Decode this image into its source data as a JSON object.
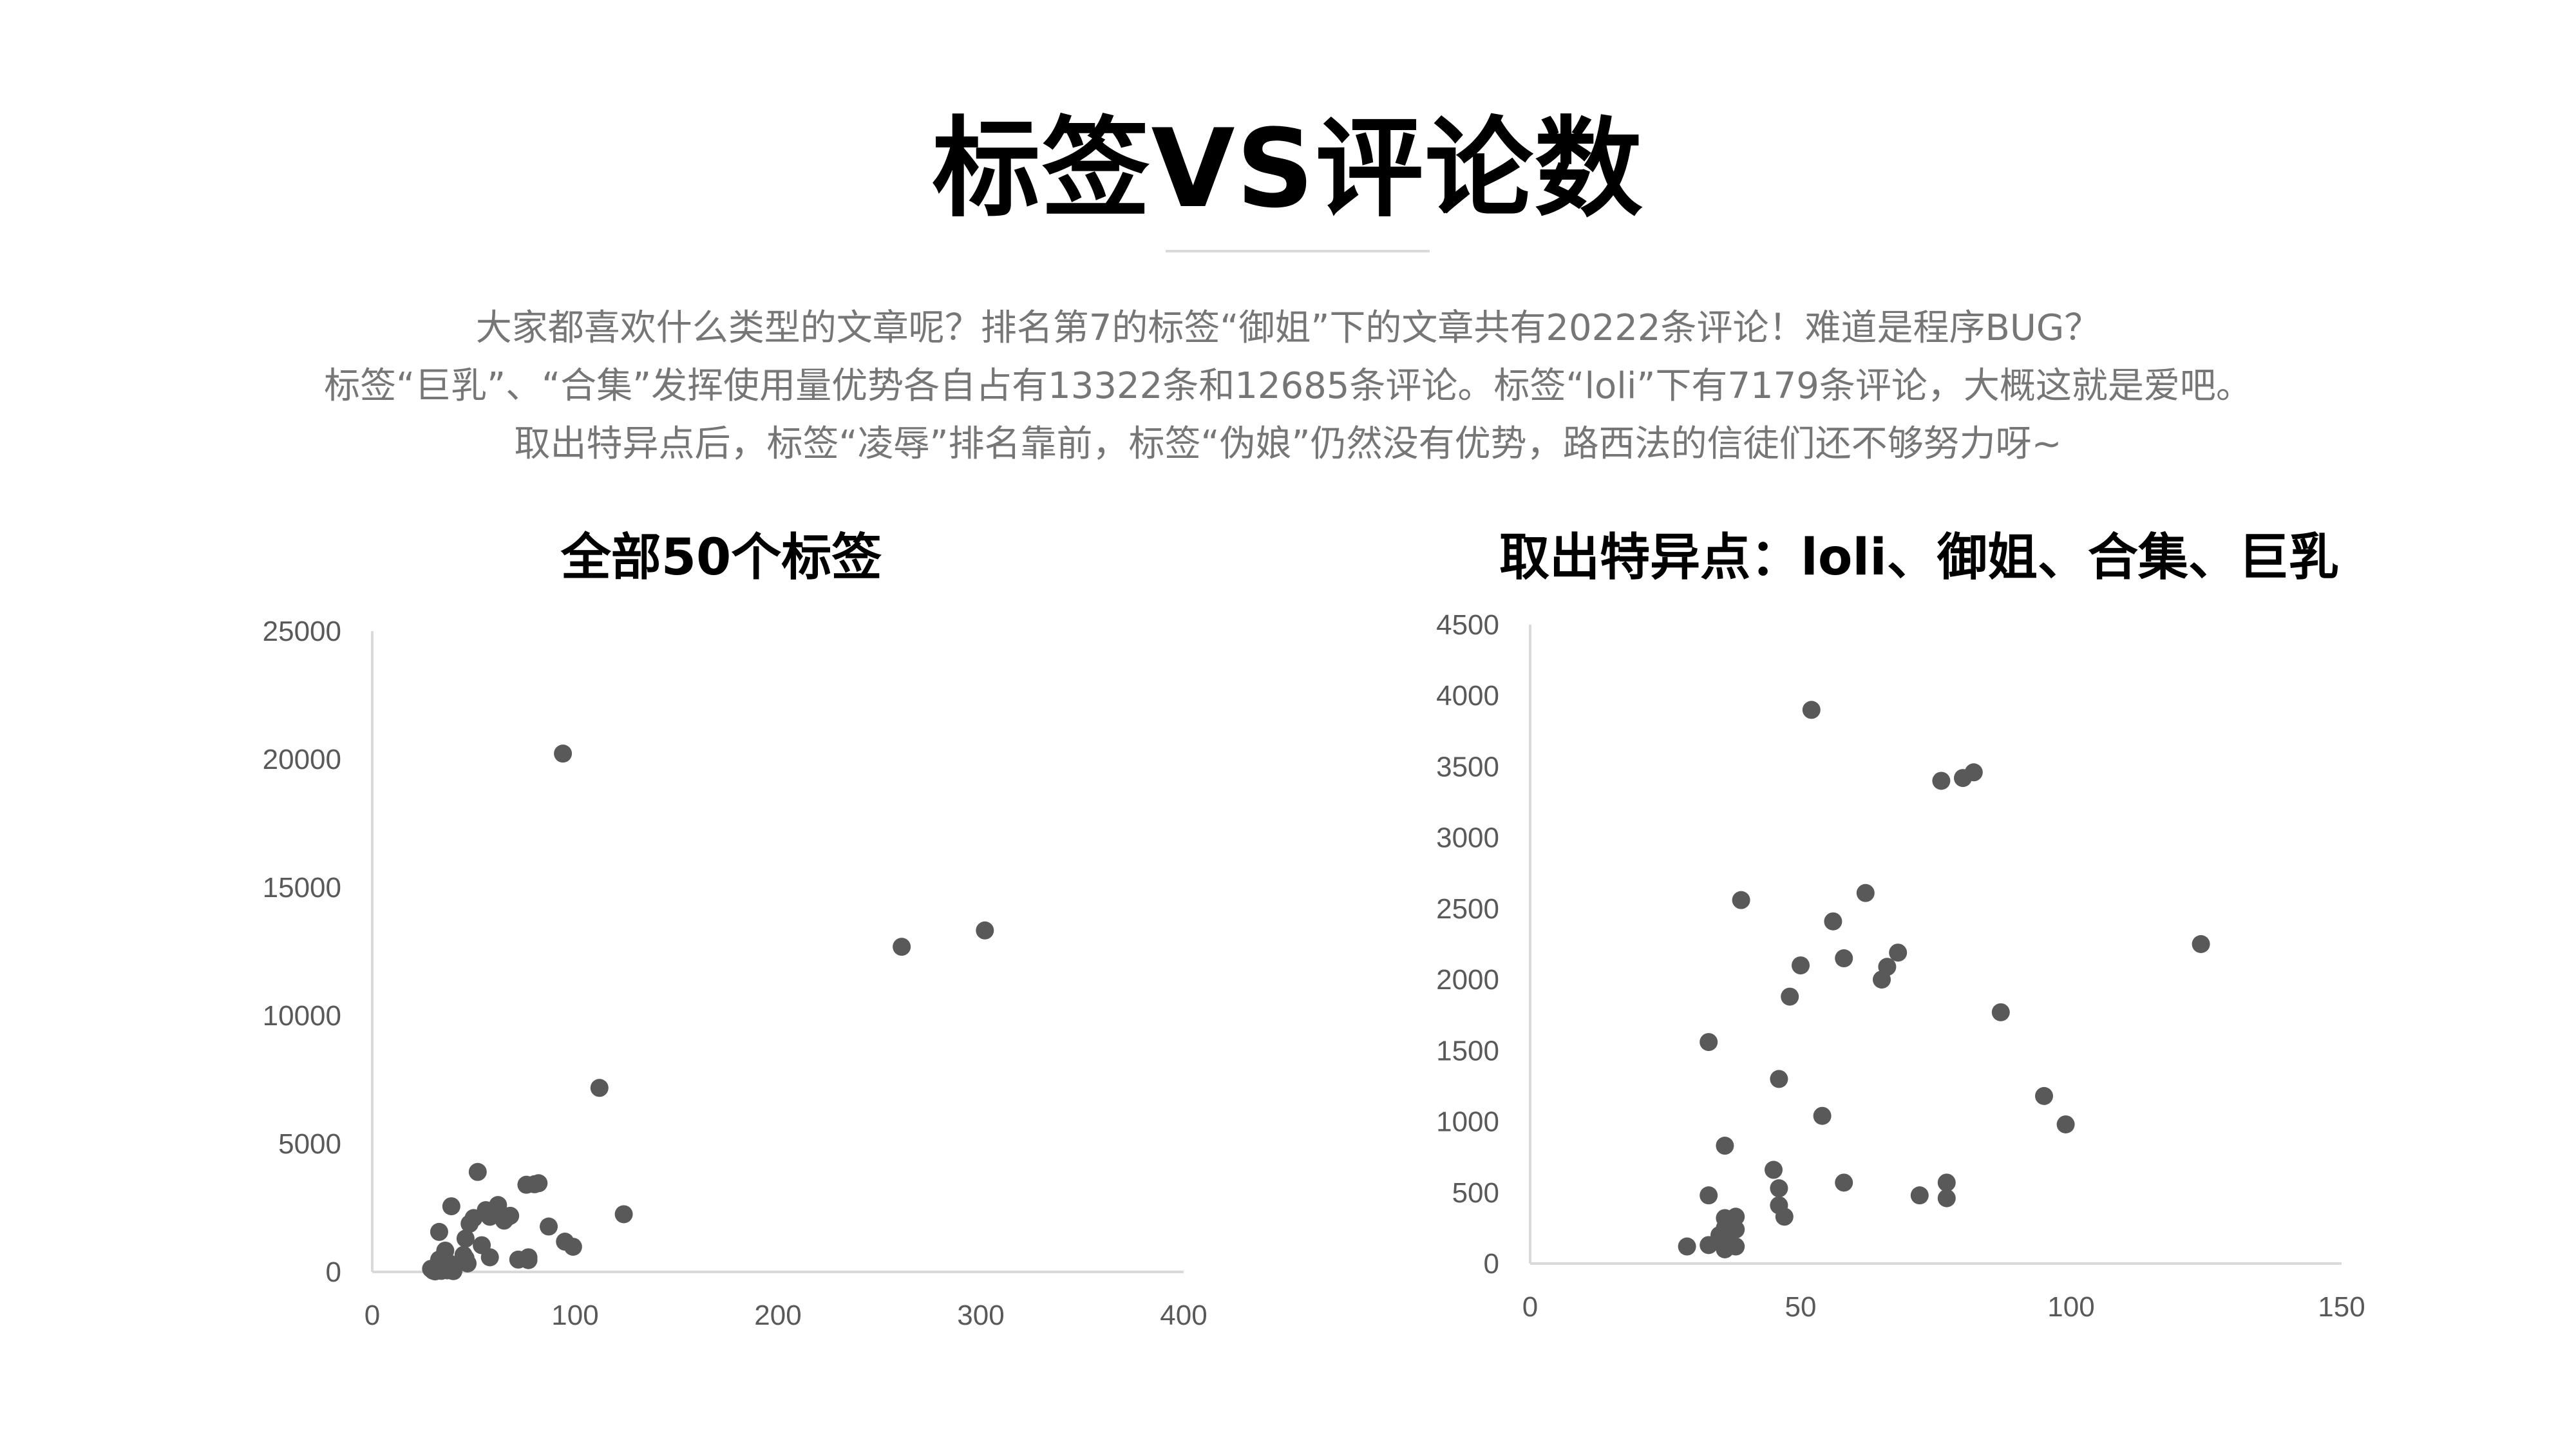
{
  "title": "标签VS评论数",
  "description": [
    "大家都喜欢什么类型的文章呢？排名第7的标签“御姐”下的文章共有20222条评论！难道是程序BUG？",
    "标签“巨乳”、“合集”发挥使用量优势各自占有13322条和12685条评论。标签“loli”下有7179条评论，大概这就是爱吧。",
    "取出特异点后，标签“凌辱”排名靠前，标签“伪娘”仍然没有优势，路西法的信徒们还不够努力呀~"
  ],
  "colors": {
    "point": "#595959",
    "axis": "#d9d9d9",
    "text": "#767676"
  },
  "chart_data": [
    {
      "type": "scatter",
      "title": "全部50个标签",
      "xlim": [
        0,
        400
      ],
      "ylim": [
        0,
        25000
      ],
      "xticks": [
        "0",
        "100",
        "200",
        "300",
        "400"
      ],
      "yticks": [
        "0",
        "5000",
        "10000",
        "15000",
        "20000",
        "25000"
      ],
      "grid": false,
      "points": [
        [
          94,
          20222
        ],
        [
          302,
          13322
        ],
        [
          261,
          12685
        ],
        [
          112,
          7179
        ],
        [
          52,
          3900
        ],
        [
          76,
          3400
        ],
        [
          80,
          3420
        ],
        [
          82,
          3460
        ],
        [
          39,
          2560
        ],
        [
          62,
          2610
        ],
        [
          56,
          2410
        ],
        [
          124,
          2250
        ],
        [
          50,
          2100
        ],
        [
          58,
          2150
        ],
        [
          68,
          2190
        ],
        [
          66,
          2090
        ],
        [
          65,
          2000
        ],
        [
          48,
          1880
        ],
        [
          87,
          1770
        ],
        [
          33,
          1560
        ],
        [
          46,
          1300
        ],
        [
          95,
          1180
        ],
        [
          54,
          1040
        ],
        [
          99,
          980
        ],
        [
          36,
          830
        ],
        [
          45,
          660
        ],
        [
          58,
          570
        ],
        [
          77,
          570
        ],
        [
          46,
          530
        ],
        [
          33,
          480
        ],
        [
          72,
          480
        ],
        [
          77,
          460
        ],
        [
          46,
          410
        ],
        [
          36,
          320
        ],
        [
          38,
          330
        ],
        [
          47,
          330
        ],
        [
          36,
          250
        ],
        [
          38,
          240
        ],
        [
          35,
          200
        ],
        [
          37,
          150
        ],
        [
          33,
          130
        ],
        [
          29,
          120
        ],
        [
          36,
          100
        ],
        [
          38,
          120
        ],
        [
          30,
          50
        ],
        [
          34,
          40
        ],
        [
          37,
          60
        ],
        [
          40,
          30
        ],
        [
          31,
          20
        ],
        [
          35,
          80
        ]
      ]
    },
    {
      "type": "scatter",
      "title": "取出特异点：loli、御姐、合集、巨乳",
      "xlim": [
        0,
        150
      ],
      "ylim": [
        0,
        4500
      ],
      "xticks": [
        "0",
        "50",
        "100",
        "150"
      ],
      "yticks": [
        "0",
        "500",
        "1000",
        "1500",
        "2000",
        "2500",
        "3000",
        "3500",
        "4000",
        "4500"
      ],
      "grid": false,
      "points": [
        [
          52,
          3900
        ],
        [
          76,
          3400
        ],
        [
          80,
          3420
        ],
        [
          82,
          3460
        ],
        [
          39,
          2560
        ],
        [
          62,
          2610
        ],
        [
          56,
          2410
        ],
        [
          124,
          2250
        ],
        [
          50,
          2100
        ],
        [
          58,
          2150
        ],
        [
          68,
          2190
        ],
        [
          66,
          2090
        ],
        [
          65,
          2000
        ],
        [
          48,
          1880
        ],
        [
          87,
          1770
        ],
        [
          33,
          1560
        ],
        [
          46,
          1300
        ],
        [
          95,
          1180
        ],
        [
          54,
          1040
        ],
        [
          99,
          980
        ],
        [
          36,
          830
        ],
        [
          45,
          660
        ],
        [
          58,
          570
        ],
        [
          77,
          570
        ],
        [
          46,
          530
        ],
        [
          33,
          480
        ],
        [
          72,
          480
        ],
        [
          77,
          460
        ],
        [
          46,
          410
        ],
        [
          36,
          320
        ],
        [
          38,
          330
        ],
        [
          47,
          330
        ],
        [
          36,
          250
        ],
        [
          38,
          240
        ],
        [
          35,
          200
        ],
        [
          37,
          150
        ],
        [
          33,
          130
        ],
        [
          29,
          120
        ],
        [
          36,
          100
        ],
        [
          38,
          120
        ]
      ]
    }
  ]
}
